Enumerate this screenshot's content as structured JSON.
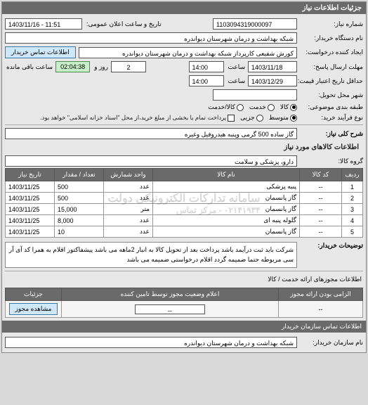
{
  "header": {
    "title": "جزئیات اطلاعات نیاز"
  },
  "top": {
    "need_no_label": "شماره نیاز:",
    "need_no": "1103094319000097",
    "pub_datetime_label": "تاریخ و ساعت اعلان عمومی:",
    "pub_datetime": "1403/11/16 - 11:51",
    "buyer_org_label": "نام دستگاه خریدار:",
    "buyer_org": "شبکه بهداشت و درمان شهرستان دیواندره",
    "creator_label": "ایجاد کننده درخواست:",
    "creator": "کورش شفیعی کارپرداز شبکه بهداشت و درمان شهرستان دیواندره",
    "contact_btn": "اطلاعات تماس خریدار",
    "reply_deadline_label": "مهلت ارسال پاسخ:",
    "to_date_label": "تا تاریخ:",
    "reply_date": "1403/11/18",
    "time_label": "ساعت",
    "reply_time": "14:00",
    "days_label": "روز و",
    "days_left": "2",
    "remain": "02:04:38",
    "remain_suffix": "ساعت باقی مانده",
    "price_valid_label": "حداقل تاریخ اعتبار قیمت: تا تاریخ:",
    "price_valid_date": "1403/12/29",
    "price_valid_time": "14:00",
    "delivery_city_label": "شهر محل تحویل:",
    "category_label": "طبقه بندی موضوعی:",
    "cat1": "کالا",
    "cat2": "خدمت",
    "cat3": "کالا/خدمت",
    "proc_type_label": "نوع فرآیند خرید:",
    "p1": "متوسط",
    "p2": "جزیی",
    "p3": "پرداخت تمام یا بخشی از مبلغ خرید،از محل \"اسناد خزانه اسلامی\" خواهد بود."
  },
  "need": {
    "title_label": "شرح کلی نیاز:",
    "title": "گاز ساده 500 گرمی وپنبه هیدروفیل وغیره"
  },
  "items_header": "اطلاعات کالاهای مورد نیاز",
  "group": {
    "label": "گروه کالا:",
    "value": "دارو، پزشکی و سلامت"
  },
  "watermark": "سامانه تدارکات الکترونیکی دولت",
  "watermark_num": "۰۲۱۴۱۹۳۴ - مرکز تماس",
  "table": {
    "cols": [
      "ردیف",
      "کد کالا",
      "نام کالا",
      "واحد شمارش",
      "تعداد / مقدار",
      "تاریخ نیاز"
    ],
    "rows": [
      [
        "1",
        "--",
        "پنبه پزشکی",
        "عدد",
        "500",
        "1403/11/25"
      ],
      [
        "2",
        "--",
        "گاز پانسمان",
        "عدد",
        "500",
        "1403/11/25"
      ],
      [
        "3",
        "--",
        "گاز پانسمان",
        "متر",
        "15,000",
        "1403/11/25"
      ],
      [
        "4",
        "--",
        "گلوله پنبه ای",
        "عدد",
        "8,000",
        "1403/11/25"
      ],
      [
        "5",
        "--",
        "گاز پانسمان",
        "عدد",
        "10",
        "1403/11/25"
      ]
    ]
  },
  "buyer_note": {
    "label": "توضیحات خریدار:",
    "text": "شرکت باید ثبت درآیمد باشد پرداخت بعد از تحویل کالا به انبار 2ماهه می باشد پیشفاکتور اقلام به همرا کد آی آر سی مربوطه حتما ضمیمه گردد اقلام درخواستی ضمیمه می باشد"
  },
  "auth_section": "اطلاعات مجوزهای ارائه خدمت / کالا",
  "auth_table": {
    "c1": "الزامی بودن ارائه مجوز",
    "c2": "اعلام وضعیت مجوز توسط تامین کننده",
    "c3": "جزئیات",
    "v1": "--",
    "v2": "--",
    "btn": "مشاهده مجوز"
  },
  "footer": {
    "title": "اطلاعات تماس سازمان خریدار",
    "org_label": "نام سازمان خریدار:",
    "org": "شبکه بهداشت و درمان شهرستان دیواندره"
  }
}
